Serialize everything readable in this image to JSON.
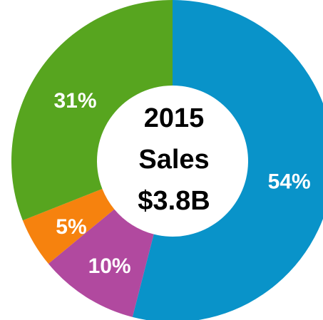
{
  "chart_data": {
    "type": "donut",
    "categories": [
      "Blue segment",
      "Purple segment",
      "Orange segment",
      "Green segment"
    ],
    "values": [
      54,
      10,
      5,
      31
    ],
    "value_labels": [
      "54%",
      "10%",
      "5%",
      "31%"
    ],
    "colors": [
      "#0993c9",
      "#b1499f",
      "#f6820e",
      "#57a51f"
    ],
    "center_label": [
      "2015",
      "Sales",
      "$3.8B"
    ]
  }
}
